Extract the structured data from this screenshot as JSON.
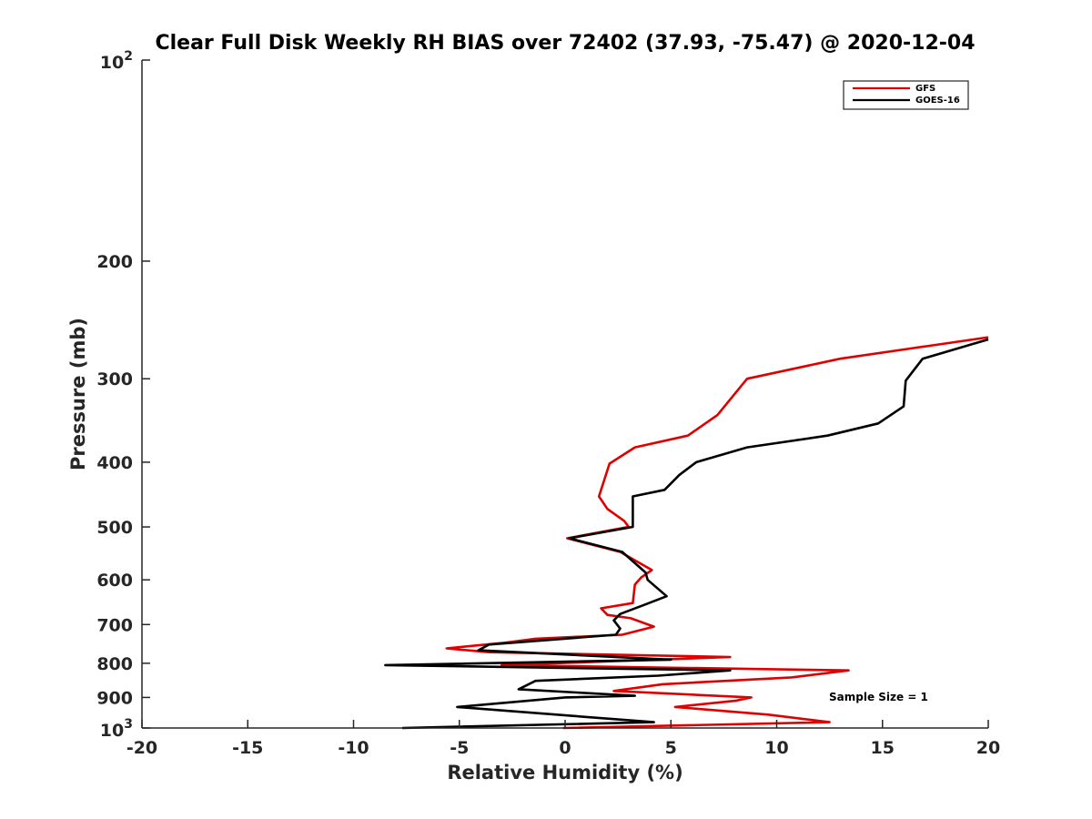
{
  "chart_data": {
    "type": "line",
    "title": "Clear Full Disk Weekly RH BIAS over 72402 (37.93, -75.47) @ 2020-12-04",
    "xlabel": "Relative Humidity (%)",
    "ylabel": "Pressure (mb)",
    "xlim": [
      -20,
      20
    ],
    "ylim": [
      100,
      1000
    ],
    "y_scale": "log",
    "y_reversed": true,
    "x_ticks": [
      "-20",
      "-15",
      "-10",
      "-5",
      "0",
      "5",
      "10",
      "15",
      "20"
    ],
    "y_ticks": [
      {
        "value": 100,
        "base": "10",
        "exp": "2"
      },
      {
        "value": 200,
        "label": "200"
      },
      {
        "value": 300,
        "label": "300"
      },
      {
        "value": 400,
        "label": "400"
      },
      {
        "value": 500,
        "label": "500"
      },
      {
        "value": 600,
        "label": "600"
      },
      {
        "value": 700,
        "label": "700"
      },
      {
        "value": 800,
        "label": "800"
      },
      {
        "value": 900,
        "label": "900"
      },
      {
        "value": 1000,
        "base": "10",
        "exp": "3"
      }
    ],
    "legend_position": "top-right",
    "annotation": "Sample Size = 1",
    "series": [
      {
        "name": "GFS",
        "color": "#e00000",
        "points": [
          [
            20.0,
            260
          ],
          [
            13.0,
            280
          ],
          [
            8.6,
            300
          ],
          [
            7.2,
            340
          ],
          [
            5.8,
            365
          ],
          [
            3.3,
            380
          ],
          [
            2.1,
            402
          ],
          [
            1.6,
            450
          ],
          [
            2.0,
            470
          ],
          [
            2.8,
            490
          ],
          [
            3.0,
            500
          ],
          [
            0.1,
            520
          ],
          [
            2.6,
            545
          ],
          [
            4.1,
            580
          ],
          [
            3.6,
            595
          ],
          [
            3.3,
            610
          ],
          [
            3.2,
            650
          ],
          [
            1.7,
            662
          ],
          [
            2.0,
            677
          ],
          [
            3.1,
            685
          ],
          [
            4.2,
            705
          ],
          [
            2.7,
            725
          ],
          [
            -1.4,
            735
          ],
          [
            -2.8,
            745
          ],
          [
            -5.6,
            760
          ],
          [
            -3.6,
            770
          ],
          [
            7.8,
            783
          ],
          [
            -3.0,
            805
          ],
          [
            13.4,
            820
          ],
          [
            10.7,
            840
          ],
          [
            4.6,
            860
          ],
          [
            2.3,
            880
          ],
          [
            8.8,
            900
          ],
          [
            8.1,
            910
          ],
          [
            5.2,
            930
          ],
          [
            9.6,
            955
          ],
          [
            12.5,
            980
          ],
          [
            -0.1,
            1000
          ]
        ]
      },
      {
        "name": "GOES-16",
        "color": "#000000",
        "points": [
          [
            20.0,
            262
          ],
          [
            16.9,
            280
          ],
          [
            16.1,
            302
          ],
          [
            16.0,
            330
          ],
          [
            14.8,
            350
          ],
          [
            12.4,
            365
          ],
          [
            8.6,
            380
          ],
          [
            6.2,
            400
          ],
          [
            5.4,
            418
          ],
          [
            4.7,
            440
          ],
          [
            3.2,
            450
          ],
          [
            3.2,
            500
          ],
          [
            0.2,
            520
          ],
          [
            2.7,
            545
          ],
          [
            3.8,
            585
          ],
          [
            3.9,
            600
          ],
          [
            4.8,
            635
          ],
          [
            3.7,
            655
          ],
          [
            2.6,
            675
          ],
          [
            2.3,
            690
          ],
          [
            2.6,
            710
          ],
          [
            2.4,
            725
          ],
          [
            -3.6,
            750
          ],
          [
            -4.1,
            765
          ],
          [
            5.0,
            790
          ],
          [
            -8.5,
            805
          ],
          [
            7.8,
            820
          ],
          [
            4.4,
            835
          ],
          [
            -1.4,
            850
          ],
          [
            -2.2,
            875
          ],
          [
            3.3,
            895
          ],
          [
            0.0,
            900
          ],
          [
            -5.1,
            930
          ],
          [
            4.2,
            980
          ],
          [
            -7.7,
            1000
          ]
        ]
      }
    ]
  }
}
